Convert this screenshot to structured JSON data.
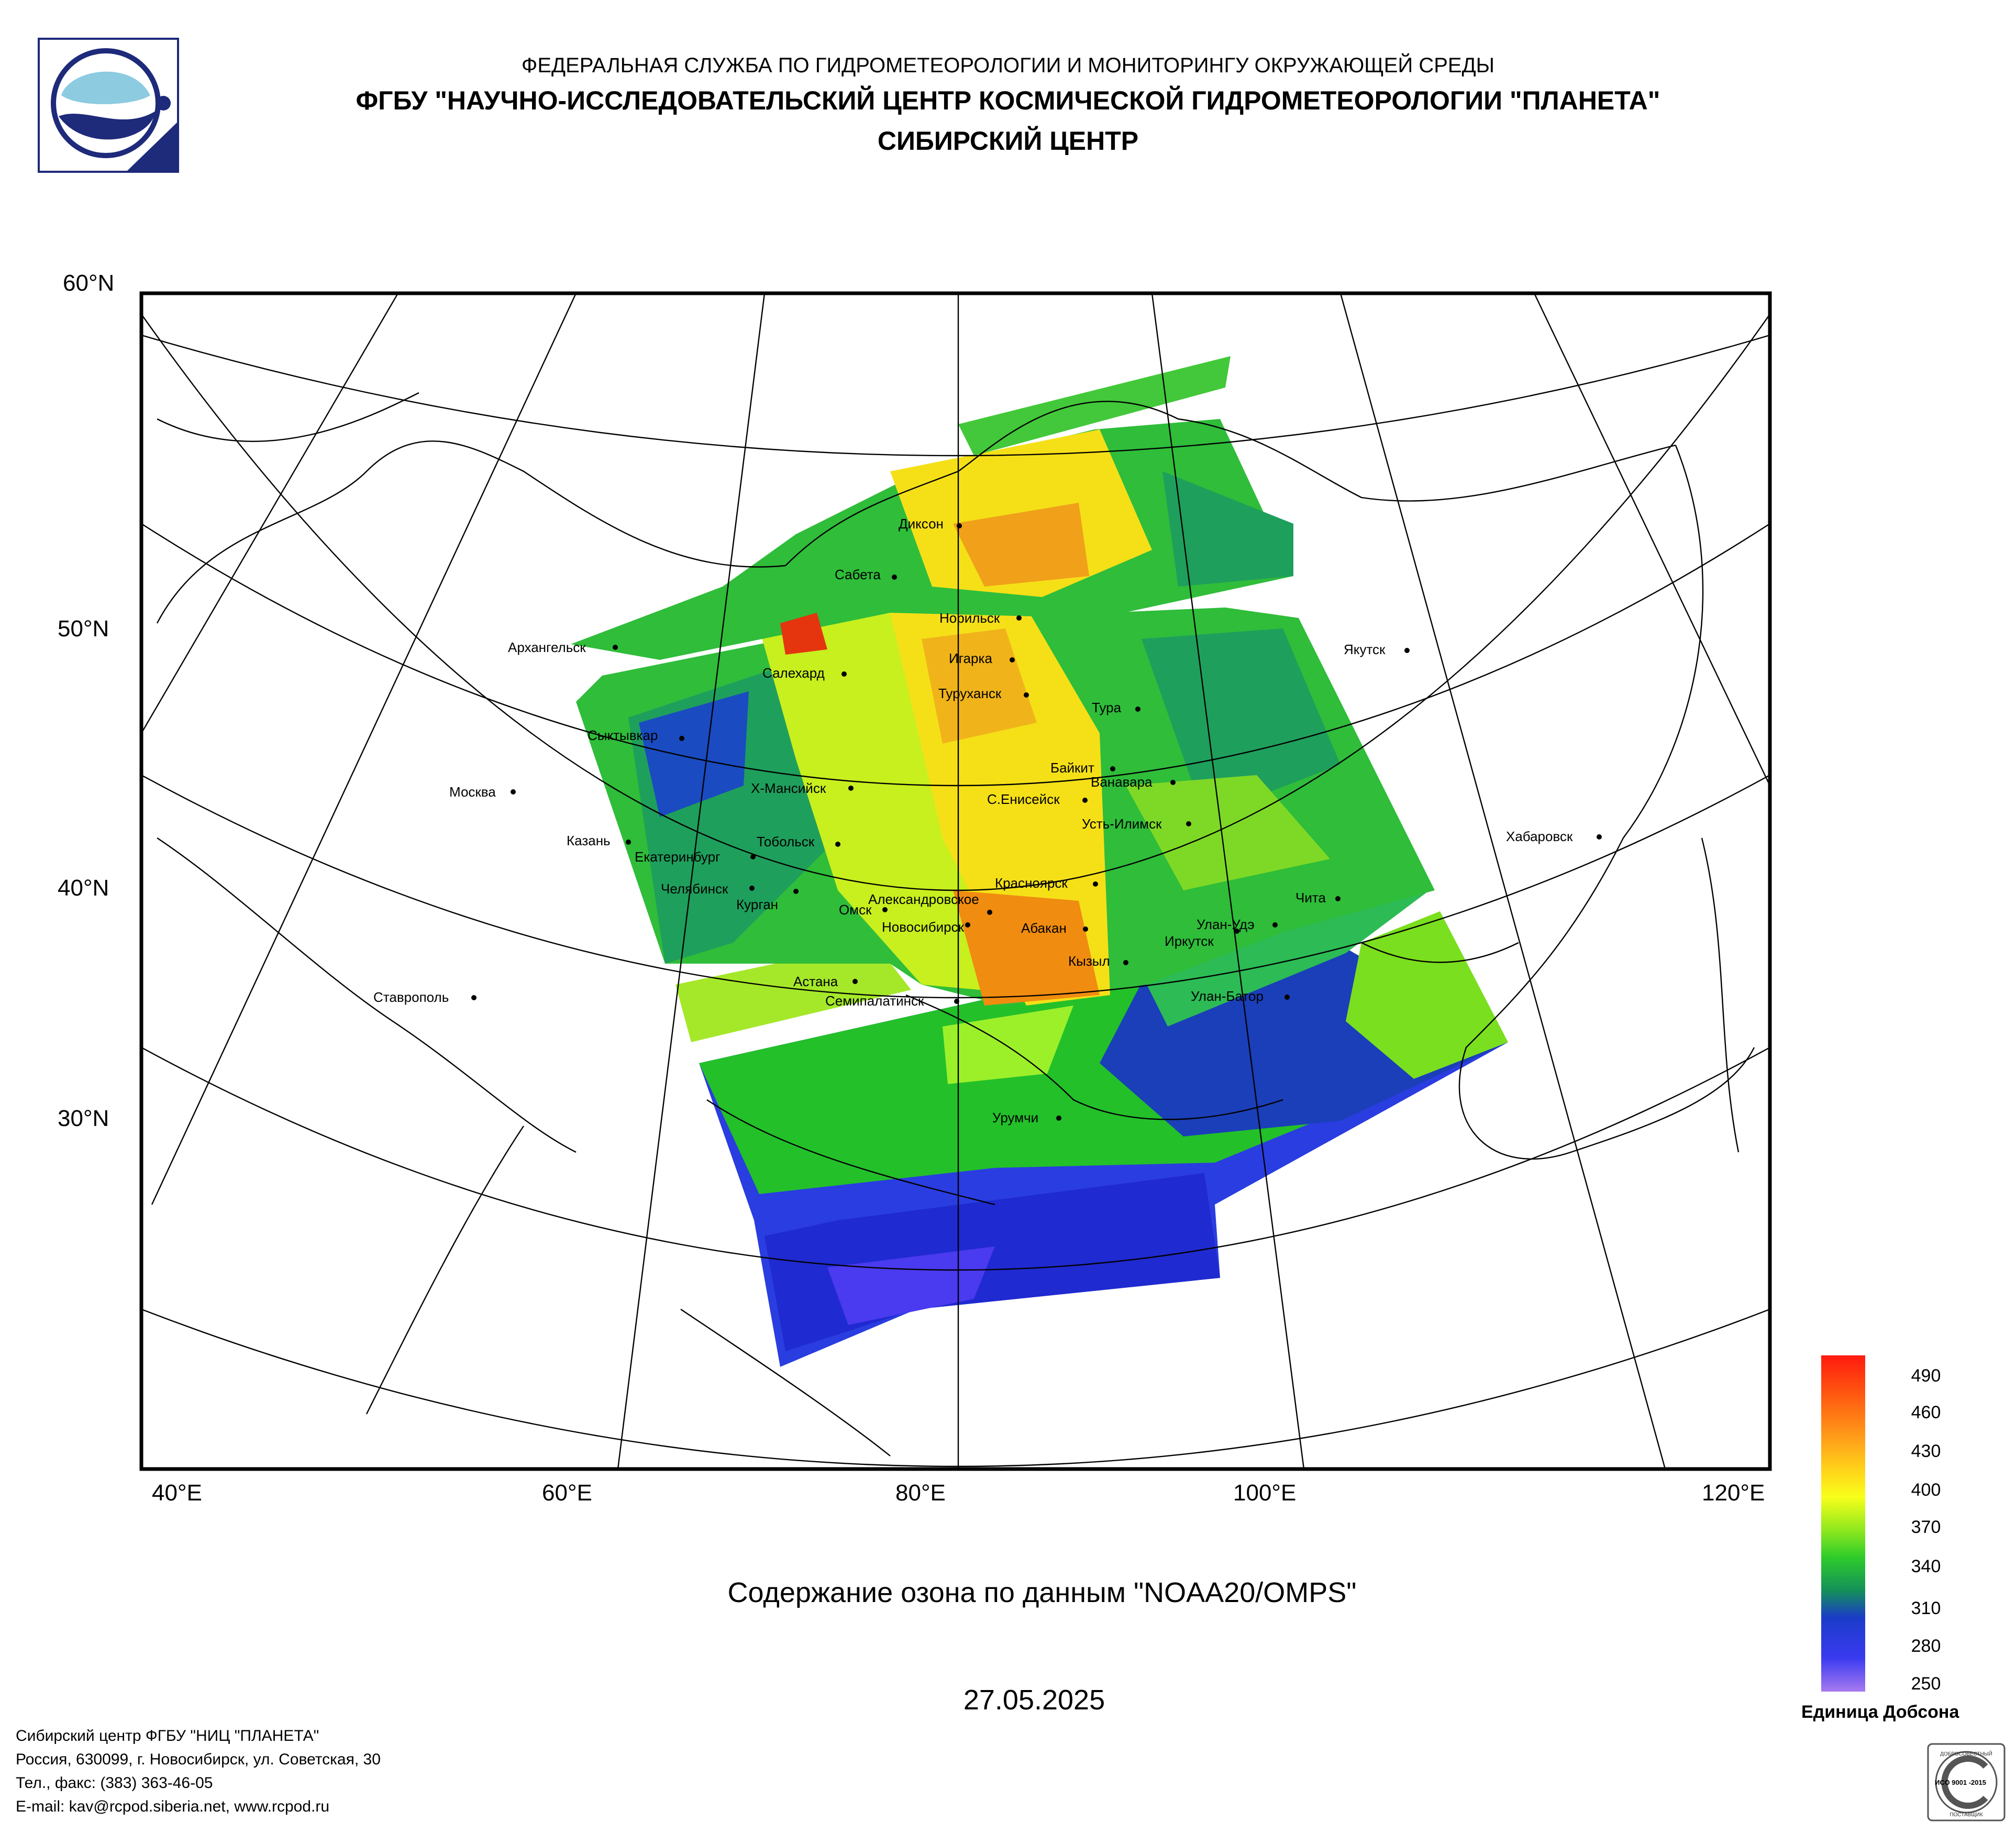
{
  "header": {
    "line1": "ФЕДЕРАЛЬНАЯ СЛУЖБА ПО ГИДРОМЕТЕОРОЛОГИИ И МОНИТОРИНГУ ОКРУЖАЮЩЕЙ СРЕДЫ",
    "line2": "ФГБУ \"НАУЧНО-ИССЛЕДОВАТЕЛЬСКИЙ ЦЕНТР КОСМИЧЕСКОЙ ГИДРОМЕТЕОРОЛОГИИ \"ПЛАНЕТА\"",
    "line3": "СИБИРСКИЙ ЦЕНТР"
  },
  "map": {
    "lat_labels": [
      "60°N",
      "50°N",
      "40°N",
      "30°N"
    ],
    "lon_labels": [
      "40°E",
      "60°E",
      "80°E",
      "100°E",
      "120°E"
    ],
    "cities": [
      {
        "name": "Архангельск"
      },
      {
        "name": "Сыктывкар"
      },
      {
        "name": "Москва"
      },
      {
        "name": "Казань"
      },
      {
        "name": "Екатеринбург"
      },
      {
        "name": "Челябинск"
      },
      {
        "name": "Курган"
      },
      {
        "name": "Тобольск"
      },
      {
        "name": "Х-Мансийск"
      },
      {
        "name": "Салехард"
      },
      {
        "name": "Сабета"
      },
      {
        "name": "Диксон"
      },
      {
        "name": "Норильск"
      },
      {
        "name": "Игарка"
      },
      {
        "name": "Туруханск"
      },
      {
        "name": "Тура"
      },
      {
        "name": "Байкит"
      },
      {
        "name": "Ванавара"
      },
      {
        "name": "С.Енисейск"
      },
      {
        "name": "Усть-Илимск"
      },
      {
        "name": "Красноярск"
      },
      {
        "name": "Александровское"
      },
      {
        "name": "Омск"
      },
      {
        "name": "Новосибирск"
      },
      {
        "name": "Абакан"
      },
      {
        "name": "Кызыл"
      },
      {
        "name": "Иркутск"
      },
      {
        "name": "Улан-Удэ"
      },
      {
        "name": "Чита"
      },
      {
        "name": "Улан-Батор"
      },
      {
        "name": "Астана"
      },
      {
        "name": "Семипалатинск"
      },
      {
        "name": "Урумчи"
      },
      {
        "name": "Ставрополь"
      },
      {
        "name": "Якутск"
      },
      {
        "name": "Хабаровск"
      }
    ]
  },
  "caption": "Содержание озона по данным \"NOAA20/OMPS\"",
  "date": "27.05.2025",
  "colorbar": {
    "ticks": [
      "490",
      "460",
      "430",
      "400",
      "370",
      "340",
      "310",
      "280",
      "250"
    ],
    "unit": "Единица Добсона"
  },
  "footer": [
    "Сибирский центр ФГБУ \"НИЦ \"ПЛАНЕТА\"",
    "Россия, 630099, г. Новосибирск, ул. Советская, 30",
    "Тел., факс: (383) 363-46-05",
    "E-mail: kav@rcpod.siberia.net, www.rcpod.ru"
  ],
  "iso_badge": {
    "top": "ДОБРОСОВЕСТНЫЙ",
    "center": "ИСО 9001 -2015",
    "bottom": "ПОСТАВЩИК"
  }
}
